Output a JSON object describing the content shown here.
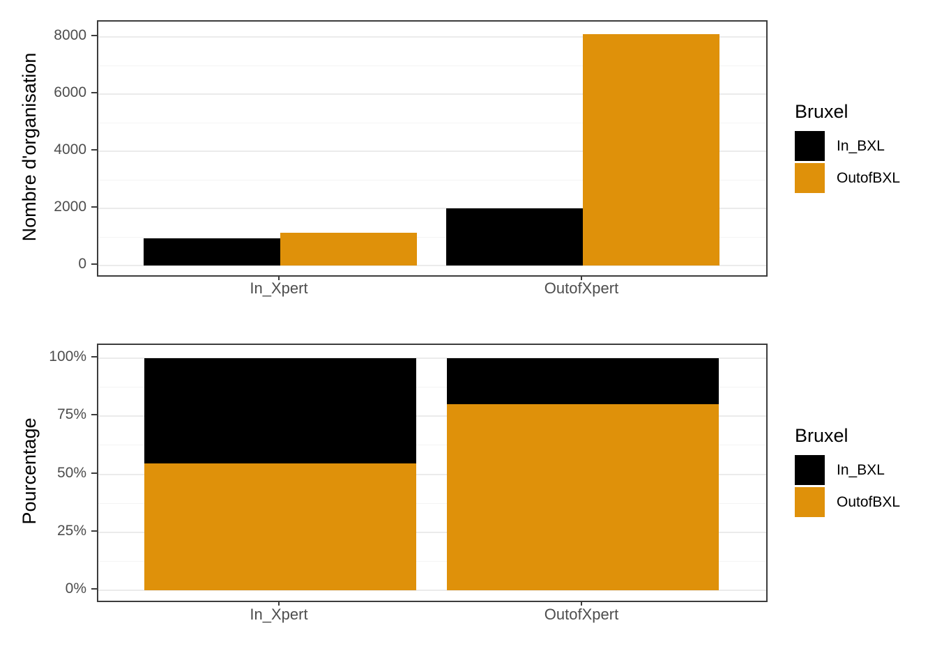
{
  "figure": {
    "background": "#ffffff"
  },
  "colors": {
    "in_bxl": "#000000",
    "outof_bxl": "#df910a",
    "panel_border": "#3c3c3c",
    "grid_major": "#ebebeb",
    "grid_minor": "#f4f4f4",
    "tick_label": "#4d4d4d",
    "axis_title": "#000000"
  },
  "chart_data": [
    {
      "type": "bar",
      "variant": "grouped",
      "title": "",
      "xlabel": "",
      "ylabel": "Nombre d'organisation",
      "categories": [
        "In_Xpert",
        "OutofXpert"
      ],
      "series": [
        {
          "name": "In_BXL",
          "color": "#000000",
          "values": [
            950,
            2000
          ]
        },
        {
          "name": "OutofBXL",
          "color": "#df910a",
          "values": [
            1150,
            8100
          ]
        }
      ],
      "ylim": [
        0,
        8500
      ],
      "yticks": [
        {
          "v": 0,
          "label": "0"
        },
        {
          "v": 2000,
          "label": "2000"
        },
        {
          "v": 4000,
          "label": "4000"
        },
        {
          "v": 6000,
          "label": "6000"
        },
        {
          "v": 8000,
          "label": "8000"
        }
      ],
      "yminor": [
        1000,
        3000,
        5000,
        7000
      ],
      "grid": true,
      "legend_position": "right",
      "legend": {
        "title": "Bruxel",
        "entries": [
          {
            "label": "In_BXL",
            "color": "#000000"
          },
          {
            "label": "OutofBXL",
            "color": "#df910a"
          }
        ]
      }
    },
    {
      "type": "bar",
      "variant": "stacked_percent",
      "title": "",
      "xlabel": "",
      "ylabel": "Pourcentage",
      "categories": [
        "In_Xpert",
        "OutofXpert"
      ],
      "series": [
        {
          "name": "OutofBXL",
          "color": "#df910a",
          "values": [
            54.8,
            80.2
          ]
        },
        {
          "name": "In_BXL",
          "color": "#000000",
          "values": [
            45.2,
            19.8
          ]
        }
      ],
      "ylim": [
        0,
        100
      ],
      "yticks": [
        {
          "v": 0,
          "label": "0%"
        },
        {
          "v": 25,
          "label": "25%"
        },
        {
          "v": 50,
          "label": "50%"
        },
        {
          "v": 75,
          "label": "75%"
        },
        {
          "v": 100,
          "label": "100%"
        }
      ],
      "yminor": [
        12.5,
        37.5,
        62.5,
        87.5
      ],
      "grid": true,
      "legend_position": "right",
      "legend": {
        "title": "Bruxel",
        "entries": [
          {
            "label": "In_BXL",
            "color": "#000000"
          },
          {
            "label": "OutofBXL",
            "color": "#df910a"
          }
        ]
      }
    }
  ]
}
